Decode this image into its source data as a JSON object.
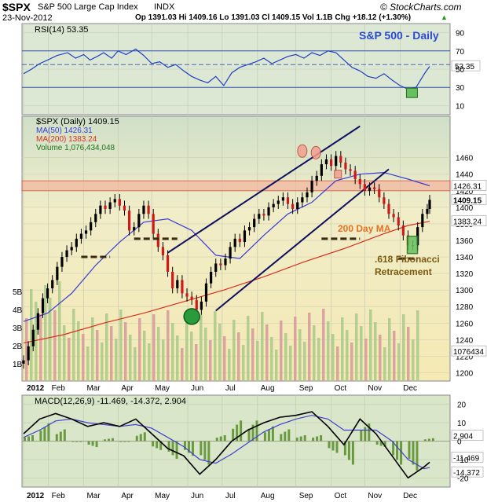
{
  "header": {
    "symbol": "$SPX",
    "name": "S&P 500 Large Cap Index",
    "exchange": "INDX",
    "date": "23-Nov-2012",
    "quote": "Op 1391.03  Hi 1409.16  Lo 1391.03  Cl 1409.15  Vol 1.1B  Chg +18.12 (+1.30%)",
    "quote_arrow": "▲",
    "credit": "© StockCharts.com"
  },
  "chart_data": [
    {
      "type": "line",
      "panel": "rsi",
      "legend": "RSI(14) 53.35",
      "annotation": "S&P 500 - Daily",
      "ylim": [
        0,
        100
      ],
      "yticks": [
        90,
        70,
        50,
        30,
        10
      ],
      "reference_lines": [
        70,
        30
      ],
      "last_value": "53.35",
      "x": [
        0,
        10,
        20,
        30,
        42,
        55,
        65,
        75,
        83,
        92,
        100,
        110,
        118,
        128,
        140,
        150,
        160,
        170,
        180,
        190,
        200,
        210,
        220,
        230,
        240,
        250,
        260,
        270,
        280,
        290,
        300,
        310,
        320,
        330,
        340,
        350,
        360,
        370,
        380,
        390,
        400,
        410,
        420,
        430,
        440,
        450,
        460,
        470,
        480,
        490,
        497,
        502,
        507
      ],
      "values": [
        45,
        50,
        56,
        60,
        65,
        68,
        62,
        66,
        60,
        64,
        68,
        62,
        70,
        66,
        72,
        65,
        56,
        58,
        52,
        55,
        48,
        42,
        38,
        35,
        42,
        32,
        46,
        52,
        55,
        58,
        62,
        56,
        60,
        64,
        66,
        62,
        68,
        65,
        70,
        68,
        60,
        52,
        48,
        42,
        40,
        45,
        38,
        32,
        28,
        30,
        40,
        47,
        53
      ]
    },
    {
      "type": "candlestick",
      "panel": "price",
      "title": "$SPX (Daily) 1409.15",
      "ylim": [
        1190,
        1510
      ],
      "yticks": [
        1460,
        1440,
        1420,
        1400,
        1380,
        1360,
        1340,
        1320,
        1300,
        1280,
        1260,
        1240,
        1220,
        1200
      ],
      "xticks": [
        "2012",
        "Feb",
        "Mar",
        "Apr",
        "May",
        "Jun",
        "Jul",
        "Aug",
        "Sep",
        "Oct",
        "Nov",
        "Dec"
      ],
      "close_x": [
        0,
        6,
        12,
        18,
        24,
        30,
        36,
        42,
        48,
        54,
        60,
        66,
        72,
        78,
        84,
        90,
        96,
        102,
        108,
        114,
        120,
        126,
        132,
        138,
        144,
        150,
        156,
        162,
        168,
        174,
        180,
        186,
        192,
        198,
        204,
        210,
        216,
        222,
        228,
        234,
        240,
        246,
        252,
        258,
        264,
        270,
        276,
        282,
        288,
        294,
        300,
        306,
        312,
        318,
        324,
        330,
        336,
        342,
        348,
        354,
        360,
        366,
        372,
        378,
        384,
        390,
        396,
        402,
        408,
        414,
        420,
        426,
        432,
        438,
        444,
        450,
        456,
        462,
        468,
        474,
        480,
        486,
        492,
        498,
        504,
        507
      ],
      "close": [
        1215,
        1232,
        1252,
        1272,
        1290,
        1302,
        1312,
        1328,
        1340,
        1348,
        1352,
        1362,
        1368,
        1372,
        1382,
        1392,
        1402,
        1398,
        1406,
        1410,
        1402,
        1396,
        1372,
        1376,
        1392,
        1402,
        1392,
        1368,
        1352,
        1342,
        1322,
        1302,
        1312,
        1296,
        1292,
        1288,
        1276,
        1286,
        1308,
        1322,
        1332,
        1330,
        1338,
        1352,
        1362,
        1358,
        1372,
        1376,
        1386,
        1392,
        1390,
        1400,
        1404,
        1408,
        1412,
        1404,
        1398,
        1406,
        1412,
        1418,
        1432,
        1438,
        1452,
        1458,
        1450,
        1462,
        1454,
        1446,
        1444,
        1434,
        1428,
        1420,
        1424,
        1422,
        1412,
        1404,
        1392,
        1388,
        1378,
        1366,
        1354,
        1354,
        1376,
        1392,
        1398,
        1409
      ],
      "series": [
        {
          "name": "MA(50) 1426.31",
          "color": "#3a3ad8",
          "last": "1426.31",
          "x": [
            0,
            30,
            60,
            90,
            120,
            150,
            180,
            210,
            240,
            270,
            300,
            330,
            360,
            390,
            420,
            450,
            480,
            507
          ],
          "values": [
            1262,
            1272,
            1296,
            1330,
            1358,
            1382,
            1386,
            1372,
            1342,
            1338,
            1366,
            1392,
            1406,
            1432,
            1440,
            1442,
            1434,
            1426
          ]
        },
        {
          "name": "MA(200) 1383.24",
          "color": "#d83020",
          "last": "1383.24",
          "x": [
            0,
            50,
            100,
            150,
            200,
            250,
            300,
            350,
            400,
            450,
            480,
            507
          ],
          "values": [
            1236,
            1246,
            1260,
            1272,
            1286,
            1300,
            1316,
            1334,
            1350,
            1368,
            1378,
            1383
          ]
        }
      ],
      "volume_legend": "Volume 1,076,434,048",
      "volume_last": "1076434",
      "volume_ticks": [
        "5B",
        "4B",
        "3B",
        "2B",
        "1B"
      ],
      "resistance_band": [
        1420,
        1432
      ],
      "support_levels": [
        {
          "x0": 72,
          "x1": 108,
          "y": 1340
        },
        {
          "x0": 138,
          "x1": 192,
          "y": 1362
        },
        {
          "x0": 372,
          "x1": 420,
          "y": 1362
        },
        {
          "x0": 468,
          "x1": 492,
          "y": 1338
        }
      ],
      "channel_upper": {
        "x0": 180,
        "y0": 1345,
        "x1": 420,
        "y1": 1498
      },
      "channel_lower": {
        "x0": 240,
        "y0": 1275,
        "x1": 456,
        "y1": 1446
      },
      "annotations": [
        {
          "text": "200 Day MA",
          "color": "#e87020"
        },
        {
          "text": ".618 Fibonacci",
          "color": "#7a5a10"
        },
        {
          "text": "Retracement",
          "color": "#7a5a10"
        }
      ],
      "price_label": "1409.15",
      "ma200_label": "1383.24"
    },
    {
      "type": "line",
      "panel": "macd",
      "legend": "MACD(12,26,9) -11.469, -14.372, 2.904",
      "ylim": [
        -25,
        25
      ],
      "yticks": [
        20,
        10,
        0,
        -10,
        -20
      ],
      "last_macd": "-11.469",
      "last_signal": "-14.372",
      "last_hist": "2.904",
      "x": [
        0,
        20,
        40,
        60,
        80,
        100,
        120,
        140,
        160,
        180,
        200,
        220,
        240,
        260,
        280,
        300,
        320,
        340,
        360,
        380,
        400,
        420,
        440,
        460,
        480,
        500,
        507
      ],
      "macd": [
        4,
        12,
        15,
        12,
        8,
        10,
        8,
        12,
        4,
        -4,
        -8,
        -18,
        -10,
        0,
        6,
        10,
        13,
        14,
        16,
        8,
        -2,
        12,
        4,
        -8,
        -20,
        -14,
        -11.5
      ],
      "signal": [
        2,
        6,
        11,
        12,
        10,
        9,
        8,
        9,
        7,
        2,
        -3,
        -10,
        -12,
        -7,
        -1,
        5,
        9,
        12,
        14,
        12,
        6,
        6,
        6,
        0,
        -10,
        -15,
        -14.4
      ]
    }
  ]
}
